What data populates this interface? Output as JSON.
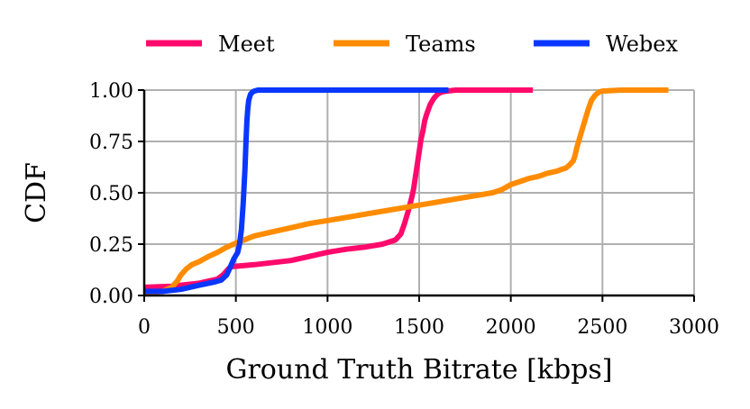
{
  "colors": {
    "Meet": "#ff0a6c",
    "Teams": "#ff8c00",
    "Webex": "#0a37ff",
    "grid": "#b0b0b0"
  },
  "chart_data": {
    "type": "line",
    "title": "",
    "xlabel": "Ground Truth Bitrate [kbps]",
    "ylabel": "CDF",
    "xlim": [
      0,
      3000
    ],
    "ylim": [
      0,
      1
    ],
    "xticks": [
      0,
      500,
      1000,
      1500,
      2000,
      2500,
      3000
    ],
    "yticks": [
      0.0,
      0.25,
      0.5,
      0.75,
      1.0
    ],
    "xtick_labels": [
      "0",
      "500",
      "1000",
      "1500",
      "2000",
      "2500",
      "3000"
    ],
    "ytick_labels": [
      "0.00",
      "0.25",
      "0.50",
      "0.75",
      "1.00"
    ],
    "grid": true,
    "legend_position": "top",
    "series": [
      {
        "name": "Meet",
        "x": [
          0,
          150,
          300,
          400,
          430,
          450,
          470,
          600,
          800,
          900,
          1000,
          1100,
          1200,
          1300,
          1370,
          1400,
          1420,
          1440,
          1460,
          1470,
          1480,
          1490,
          1500,
          1510,
          1520,
          1530,
          1540,
          1560,
          1580,
          1600,
          1620,
          1650,
          1700,
          1800,
          2000,
          2120
        ],
        "y": [
          0.04,
          0.045,
          0.06,
          0.08,
          0.1,
          0.12,
          0.14,
          0.15,
          0.17,
          0.19,
          0.21,
          0.225,
          0.235,
          0.25,
          0.27,
          0.3,
          0.35,
          0.41,
          0.48,
          0.52,
          0.58,
          0.64,
          0.7,
          0.76,
          0.8,
          0.85,
          0.88,
          0.93,
          0.96,
          0.98,
          0.99,
          0.995,
          1.0,
          1.0,
          1.0,
          1.0
        ]
      },
      {
        "name": "Teams",
        "x": [
          0,
          100,
          150,
          180,
          200,
          230,
          260,
          300,
          350,
          400,
          450,
          500,
          600,
          700,
          800,
          900,
          1000,
          1100,
          1200,
          1300,
          1400,
          1500,
          1600,
          1700,
          1800,
          1900,
          1950,
          2000,
          2050,
          2100,
          2150,
          2200,
          2250,
          2280,
          2300,
          2320,
          2340,
          2350,
          2360,
          2380,
          2400,
          2420,
          2440,
          2460,
          2480,
          2500,
          2600,
          2700,
          2860
        ],
        "y": [
          0.01,
          0.02,
          0.04,
          0.07,
          0.1,
          0.13,
          0.15,
          0.165,
          0.19,
          0.21,
          0.235,
          0.255,
          0.29,
          0.31,
          0.33,
          0.35,
          0.365,
          0.38,
          0.395,
          0.41,
          0.425,
          0.44,
          0.455,
          0.47,
          0.485,
          0.5,
          0.515,
          0.54,
          0.555,
          0.57,
          0.58,
          0.595,
          0.605,
          0.615,
          0.62,
          0.635,
          0.655,
          0.68,
          0.72,
          0.78,
          0.84,
          0.9,
          0.95,
          0.975,
          0.99,
          0.995,
          1.0,
          1.0,
          1.0
        ]
      },
      {
        "name": "Webex",
        "x": [
          0,
          100,
          200,
          300,
          380,
          420,
          450,
          470,
          490,
          510,
          520,
          530,
          540,
          550,
          555,
          560,
          565,
          570,
          580,
          590,
          600,
          620,
          650,
          700,
          800,
          1000,
          1200,
          1400,
          1660
        ],
        "y": [
          0.02,
          0.02,
          0.03,
          0.05,
          0.065,
          0.075,
          0.1,
          0.14,
          0.18,
          0.21,
          0.25,
          0.32,
          0.45,
          0.62,
          0.75,
          0.85,
          0.91,
          0.95,
          0.98,
          0.99,
          0.995,
          1.0,
          1.0,
          1.0,
          1.0,
          1.0,
          1.0,
          1.0,
          1.0
        ]
      }
    ]
  }
}
